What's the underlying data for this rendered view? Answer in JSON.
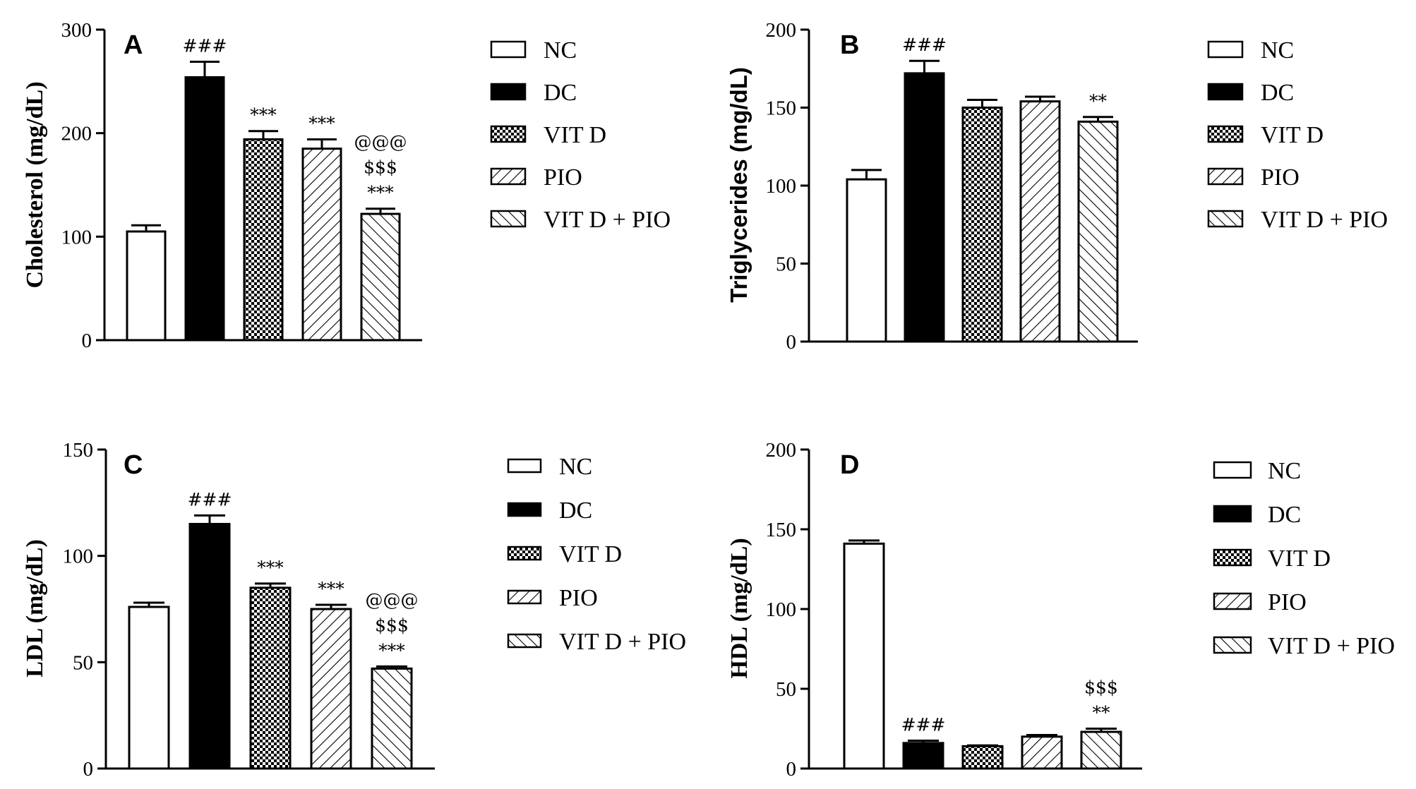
{
  "chart_data": [
    {
      "type": "bar",
      "panel": "A",
      "ylabel": "Cholesterol (mg/dL)",
      "ylim": [
        0,
        300
      ],
      "yticks": [
        "0",
        "100",
        "200",
        "300"
      ],
      "categories": [
        "NC",
        "DC",
        "VIT D",
        "PIO",
        "VIT D + PIO"
      ],
      "values": [
        105,
        254,
        194,
        185,
        122
      ],
      "errors": [
        6,
        15,
        8,
        9,
        5
      ],
      "annotations": [
        [],
        [
          "###"
        ],
        [
          "***"
        ],
        [
          "***"
        ],
        [
          "@@@",
          "$$$",
          "***"
        ]
      ]
    },
    {
      "type": "bar",
      "panel": "B",
      "ylabel": "Triglycerides (mg/dL)",
      "ylim": [
        0,
        200
      ],
      "yticks": [
        "0",
        "50",
        "100",
        "150",
        "200"
      ],
      "categories": [
        "NC",
        "DC",
        "VIT D",
        "PIO",
        "VIT D + PIO"
      ],
      "values": [
        104,
        172,
        150,
        154,
        141
      ],
      "errors": [
        6,
        8,
        5,
        3,
        3
      ],
      "annotations": [
        [],
        [
          "###"
        ],
        [],
        [],
        [
          "**"
        ]
      ]
    },
    {
      "type": "bar",
      "panel": "C",
      "ylabel": "LDL (mg/dL)",
      "ylim": [
        0,
        150
      ],
      "yticks": [
        "0",
        "50",
        "100",
        "150"
      ],
      "categories": [
        "NC",
        "DC",
        "VIT D",
        "PIO",
        "VIT D + PIO"
      ],
      "values": [
        76,
        115,
        85,
        75,
        47
      ],
      "errors": [
        2,
        4,
        2,
        2,
        1
      ],
      "annotations": [
        [],
        [
          "###"
        ],
        [
          "***"
        ],
        [
          "***"
        ],
        [
          "@@@",
          "$$$",
          "***"
        ]
      ]
    },
    {
      "type": "bar",
      "panel": "D",
      "ylabel": "HDL (mg/dL)",
      "ylim": [
        0,
        200
      ],
      "yticks": [
        "0",
        "50",
        "100",
        "150",
        "200"
      ],
      "categories": [
        "NC",
        "DC",
        "VIT D",
        "PIO",
        "VIT D + PIO"
      ],
      "values": [
        141,
        16,
        14,
        20,
        23
      ],
      "errors": [
        2,
        1.5,
        0.5,
        1,
        2
      ],
      "annotations": [
        [],
        [
          "###"
        ],
        [],
        [],
        [
          "$$$",
          "**"
        ]
      ]
    }
  ],
  "legend": [
    "NC",
    "DC",
    "VIT D",
    "PIO",
    "VIT D + PIO"
  ],
  "patterns": [
    "none",
    "solid-black",
    "checker",
    "diagonal-right",
    "diagonal-left"
  ]
}
